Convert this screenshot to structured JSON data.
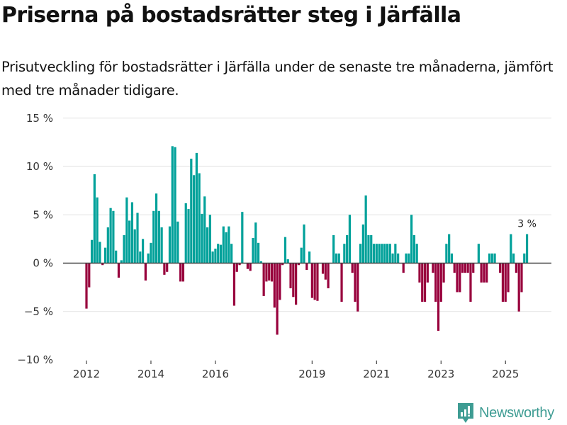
{
  "header": {
    "title": "Priserna på bostadsrätter steg i Järfälla",
    "subtitle": "Prisutveckling för bostadsrätter i Järfälla under de senaste tre månaderna, jämfört med tre månader tidigare."
  },
  "branding": {
    "logo_icon": "bar-chart-speech-bubble-icon",
    "name": "Newsworthy"
  },
  "colors": {
    "positive": "#00a19a",
    "negative": "#98003c",
    "gridline": "#e2e2e2",
    "zeroline": "#444444",
    "brand": "#3e9c93"
  },
  "chart_data": {
    "type": "bar",
    "title": "Priserna på bostadsrätter steg i Järfälla",
    "subtitle": "Prisutveckling för bostadsrätter i Järfälla under de senaste tre månaderna, jämfört med tre månader tidigare.",
    "xlabel": "",
    "ylabel": "",
    "x_start": "2012-01",
    "x_frequency": "monthly",
    "ylim": [
      -10,
      15
    ],
    "yticks": [
      15,
      10,
      5,
      0,
      -5,
      -10
    ],
    "ytick_labels": [
      "15 %",
      "10 %",
      "5 %",
      "0 %",
      "−5 %",
      "−10 %"
    ],
    "xticks": [
      {
        "label": "2012",
        "index": 0
      },
      {
        "label": "2014",
        "index": 24
      },
      {
        "label": "2016",
        "index": 48
      },
      {
        "label": "2019",
        "index": 84
      },
      {
        "label": "2021",
        "index": 108
      },
      {
        "label": "2023",
        "index": 132
      },
      {
        "label": "2025",
        "index": 156
      }
    ],
    "grid": true,
    "annotation": {
      "index": 164,
      "text": "3 %"
    },
    "values": [
      -4.7,
      -2.5,
      2.4,
      9.2,
      6.8,
      2.2,
      -0.2,
      1.6,
      3.7,
      5.7,
      5.4,
      1.3,
      -1.5,
      0.3,
      2.9,
      6.8,
      4.4,
      6.3,
      3.5,
      5.2,
      1.2,
      2.5,
      -1.8,
      1.0,
      2.1,
      5.4,
      7.2,
      5.4,
      3.7,
      -1.2,
      -0.9,
      3.8,
      12.1,
      12.0,
      4.3,
      -1.9,
      -1.9,
      6.2,
      5.6,
      10.8,
      9.1,
      11.4,
      9.3,
      5.1,
      6.9,
      3.7,
      5.0,
      1.2,
      1.5,
      2.0,
      1.9,
      3.8,
      3.2,
      3.8,
      2.0,
      -4.4,
      -0.9,
      -0.2,
      5.3,
      0,
      -0.6,
      -0.8,
      2.6,
      4.2,
      2.1,
      0.2,
      -3.4,
      -1.9,
      -1.8,
      -1.9,
      -4.6,
      -7.4,
      -3.8,
      -0.2,
      2.7,
      0.4,
      -2.6,
      -3.5,
      -4.3,
      -0.2,
      1.6,
      4.0,
      -0.7,
      1.2,
      -3.6,
      -3.8,
      -3.9,
      0,
      -1.1,
      -1.7,
      -2.6,
      0,
      2.9,
      1.0,
      1.0,
      -4.0,
      2.0,
      2.9,
      5.0,
      -1.0,
      -4.0,
      -5.0,
      2.0,
      4.0,
      7.0,
      2.9,
      2.9,
      2.0,
      2.0,
      2.0,
      2.0,
      2.0,
      2.0,
      2.0,
      1.0,
      2.0,
      1.0,
      0,
      -1.0,
      1.0,
      1.0,
      5.0,
      2.9,
      2.0,
      -2.0,
      -4.0,
      -4.0,
      -2.0,
      0,
      -1.0,
      -4.0,
      -7.0,
      -4.0,
      -2.0,
      2.0,
      3.0,
      1.0,
      -1.0,
      -3.0,
      -3.0,
      -1.0,
      -1.0,
      -1.0,
      -4.0,
      -1.0,
      0,
      2.0,
      -2.0,
      -2.0,
      -2.0,
      1.0,
      1.0,
      1.0,
      0,
      -1.0,
      -4.0,
      -4.0,
      -3.0,
      3.0,
      1.0,
      -1.0,
      -5.0,
      -3.0,
      1.0,
      3.0
    ]
  }
}
